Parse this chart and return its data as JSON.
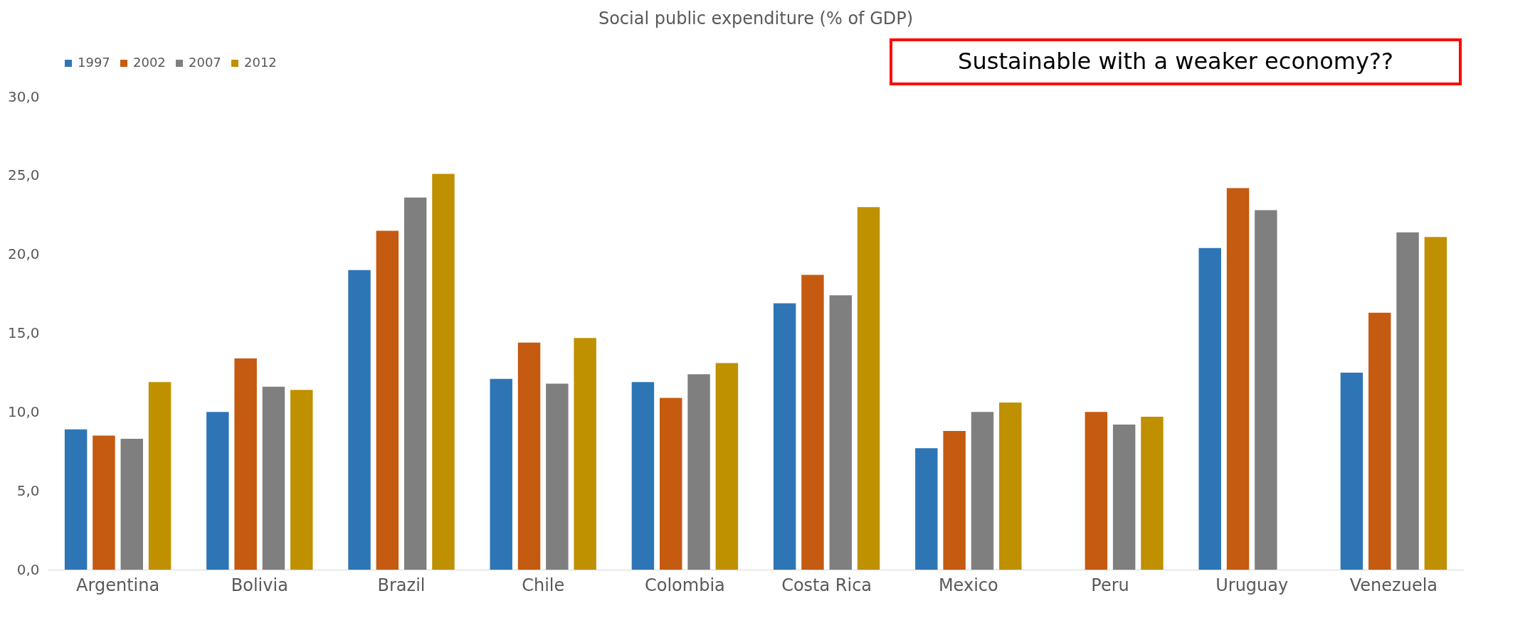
{
  "chart_data": {
    "type": "bar",
    "title": "Social public expenditure  (% of GDP)",
    "categories": [
      "Argentina",
      "Bolivia",
      "Brazil",
      "Chile",
      "Colombia",
      "Costa Rica",
      "Mexico",
      "Peru",
      "Uruguay",
      "Venezuela"
    ],
    "series": [
      {
        "name": "1997",
        "color": "#2e75b6",
        "values": [
          8.9,
          10.0,
          19.0,
          12.1,
          11.9,
          16.9,
          7.7,
          null,
          20.4,
          12.5
        ]
      },
      {
        "name": "2002",
        "color": "#c55a11",
        "values": [
          8.5,
          13.4,
          21.5,
          14.4,
          10.9,
          18.7,
          8.8,
          10.0,
          24.2,
          16.3
        ]
      },
      {
        "name": "2007",
        "color": "#7f7f7f",
        "values": [
          8.3,
          11.6,
          23.6,
          11.8,
          12.4,
          17.4,
          10.0,
          9.2,
          22.8,
          21.4
        ]
      },
      {
        "name": "2012",
        "color": "#bf9000",
        "values": [
          11.9,
          11.4,
          25.1,
          14.7,
          13.1,
          23.0,
          10.6,
          9.7,
          null,
          21.1
        ]
      }
    ],
    "ylim": [
      0,
      30
    ],
    "yticks": [
      {
        "value": 0,
        "label": "0,0"
      },
      {
        "value": 5,
        "label": "5,0"
      },
      {
        "value": 10,
        "label": "10,0"
      },
      {
        "value": 15,
        "label": "15,0"
      },
      {
        "value": 20,
        "label": "20,0"
      },
      {
        "value": 25,
        "label": "25,0"
      },
      {
        "value": 30,
        "label": "30,0"
      }
    ],
    "grid": false,
    "legend": "top",
    "annotations": [
      "Sustainable with a weaker economy??"
    ]
  }
}
